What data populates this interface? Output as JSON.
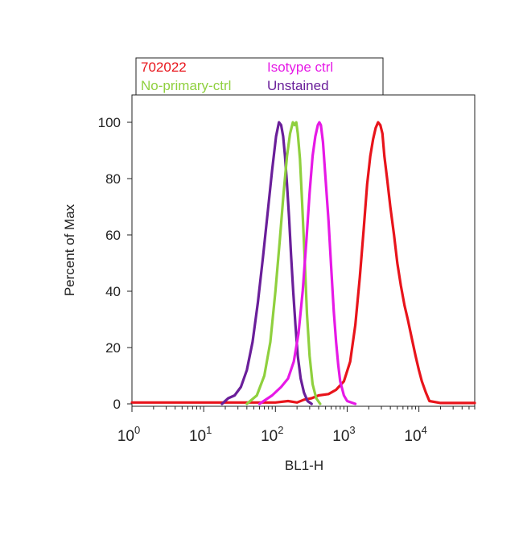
{
  "chart_data": {
    "type": "line",
    "title": "",
    "xlabel": "BL1-H",
    "ylabel": "Percent of Max",
    "x_scale": "log",
    "xlim": [
      1,
      60000
    ],
    "ylim": [
      0,
      110
    ],
    "grid": false,
    "legend_position": "top-left",
    "x_ticks": [
      {
        "value": 1,
        "base": "10",
        "exp": "0"
      },
      {
        "value": 10,
        "base": "10",
        "exp": "1"
      },
      {
        "value": 100,
        "base": "10",
        "exp": "2"
      },
      {
        "value": 1000,
        "base": "10",
        "exp": "3"
      },
      {
        "value": 10000,
        "base": "10",
        "exp": "4"
      }
    ],
    "y_ticks": [
      {
        "value": 0,
        "label": "0"
      },
      {
        "value": 20,
        "label": "20"
      },
      {
        "value": 40,
        "label": "40"
      },
      {
        "value": 60,
        "label": "60"
      },
      {
        "value": 80,
        "label": "80"
      },
      {
        "value": 100,
        "label": "100"
      }
    ],
    "series": [
      {
        "name": "702022",
        "color": "#e8141b",
        "x": [
          1,
          100,
          150,
          200,
          250,
          320,
          400,
          550,
          700,
          900,
          1100,
          1300,
          1500,
          1700,
          1900,
          2100,
          2300,
          2500,
          2700,
          2900,
          3100,
          3300,
          3600,
          4000,
          4500,
          5000,
          5600,
          6300,
          7000,
          8000,
          9000,
          10000,
          11000,
          12500,
          14000,
          20000,
          60000
        ],
        "y": [
          0.5,
          0.5,
          1,
          0.5,
          1.5,
          2,
          3,
          3.5,
          5,
          8,
          15,
          28,
          45,
          62,
          78,
          88,
          94,
          98,
          100,
          99,
          96,
          88,
          80,
          70,
          60,
          50,
          42,
          35,
          30,
          23,
          17,
          12,
          8,
          4,
          1,
          0.3,
          0.3
        ]
      },
      {
        "name": "Isotype ctrl",
        "color": "#e619e6",
        "x": [
          60,
          90,
          120,
          150,
          180,
          210,
          240,
          270,
          300,
          330,
          360,
          390,
          410,
          430,
          460,
          500,
          550,
          600,
          650,
          700,
          750,
          800,
          900,
          1000,
          1300
        ],
        "y": [
          0,
          3,
          6,
          9,
          15,
          25,
          40,
          58,
          75,
          88,
          95,
          99,
          100,
          99,
          93,
          80,
          65,
          48,
          33,
          22,
          14,
          8,
          3,
          1,
          0
        ]
      },
      {
        "name": "No-primary-ctrl",
        "color": "#8fd03e",
        "x": [
          40,
          55,
          70,
          85,
          100,
          115,
          130,
          145,
          160,
          175,
          185,
          195,
          205,
          220,
          235,
          255,
          275,
          300,
          330,
          370,
          420
        ],
        "y": [
          0,
          3,
          10,
          22,
          40,
          58,
          75,
          88,
          96,
          100,
          99,
          100,
          96,
          87,
          72,
          52,
          32,
          17,
          7,
          2,
          0
        ]
      },
      {
        "name": "Unstained",
        "color": "#6a1f9a",
        "x": [
          18,
          22,
          27,
          33,
          40,
          48,
          57,
          67,
          78,
          90,
          102,
          112,
          120,
          128,
          136,
          145,
          155,
          165,
          177,
          190,
          205,
          225,
          250,
          280,
          320
        ],
        "y": [
          0,
          2,
          3,
          6,
          12,
          22,
          36,
          52,
          68,
          83,
          95,
          100,
          99,
          95,
          88,
          78,
          66,
          53,
          40,
          28,
          17,
          9,
          4,
          1,
          0
        ]
      }
    ]
  },
  "legend": {
    "rows": [
      [
        {
          "label": "702022",
          "color": "#e8141b"
        },
        {
          "label": "Isotype ctrl",
          "color": "#e619e6"
        }
      ],
      [
        {
          "label": "No-primary-ctrl",
          "color": "#8fd03e"
        },
        {
          "label": "Unstained",
          "color": "#6a1f9a"
        }
      ]
    ]
  }
}
